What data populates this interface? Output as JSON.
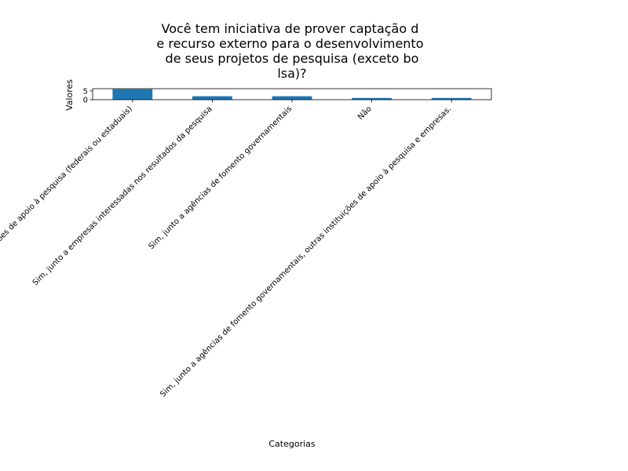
{
  "chart_data": {
    "type": "bar",
    "title": "Você tem iniciativa de prover captação d\ne recurso externo para o desenvolvimento\n de seus projetos de pesquisa (exceto bo\nlsa)?",
    "title_lines": [
      "Você tem iniciativa de prover captação d",
      "e recurso externo para o desenvolvimento",
      " de seus projetos de pesquisa (exceto bo",
      "lsa)?"
    ],
    "xlabel": "Categorias",
    "ylabel": "Valores",
    "categories": [
      "Sim, junto a outras instituições de apoio à pesquisa (federais ou estaduais)",
      "Sim, junto a empresas interessadas nos resultados da pesquisa",
      "Sim, junto a agências de fomento governamentais",
      "Não",
      "Sim, junto a agências de fomento governamentais, outras instituições de apoio à pesquisa e empresas."
    ],
    "values": [
      6,
      2,
      2,
      1,
      1
    ],
    "ylim": [
      0,
      6.3
    ],
    "yticks": [
      0,
      5
    ],
    "bar_color": "#1f77b4",
    "grid": false,
    "legend": "none"
  }
}
